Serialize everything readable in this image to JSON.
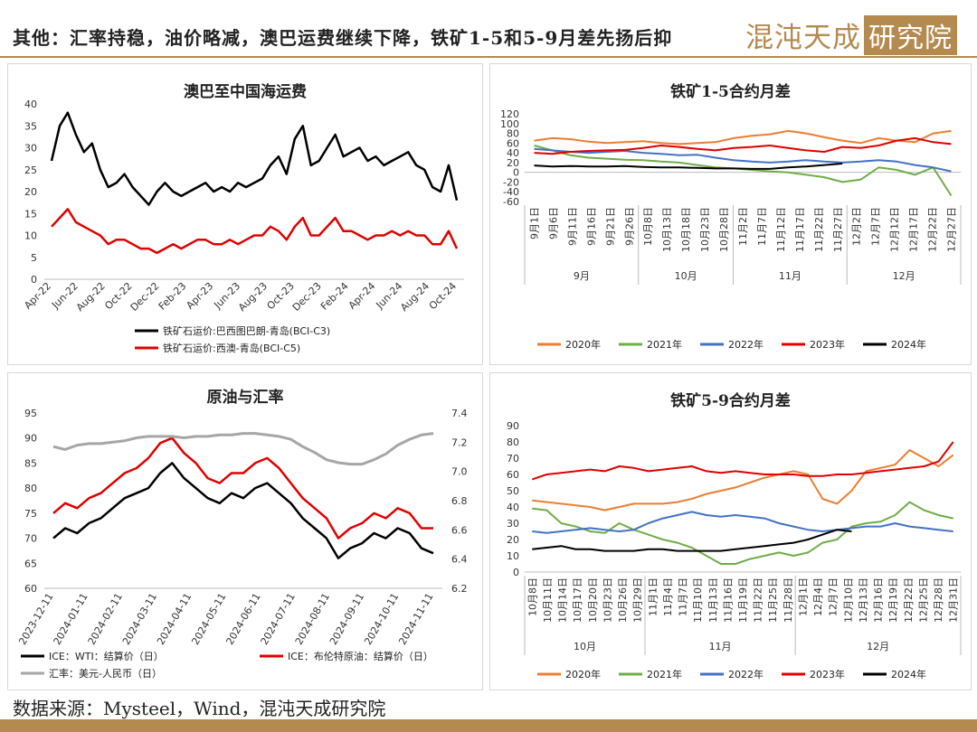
{
  "header": {
    "title": "其他：汇率持稳，油价略减，澳巴运费继续下降，铁矿1-5和5-9月差先扬后抑",
    "logo_text": "混沌天成",
    "logo_box": "研究院"
  },
  "footer": {
    "source": "数据来源：Mysteel，Wind，混沌天成研究院"
  },
  "colors": {
    "accent": "#b48a4e",
    "c2020": "#ed7d31",
    "c2021": "#70ad47",
    "c2022": "#4472c4",
    "c2023": "#e00000",
    "c2024": "#000000"
  },
  "chart_data": [
    {
      "type": "line",
      "title": "澳巴至中国海运费",
      "x_labels": [
        "Apr-22",
        "Jun-22",
        "Aug-22",
        "Oct-22",
        "Dec-22",
        "Feb-23",
        "Apr-23",
        "Jun-23",
        "Aug-23",
        "Oct-23",
        "Dec-23",
        "Feb-24",
        "Apr-24",
        "Jun-24",
        "Aug-24",
        "Oct-24"
      ],
      "ylim": [
        0,
        40
      ],
      "yticks": [
        0,
        5,
        10,
        15,
        20,
        25,
        30,
        35,
        40
      ],
      "series": [
        {
          "name": "铁矿石运价:巴西图巴朗-青岛(BCI-C3)",
          "color": "#000000",
          "values": [
            27,
            35,
            38,
            33,
            29,
            31,
            25,
            21,
            22,
            24,
            21,
            19,
            17,
            20,
            22,
            20,
            19,
            20,
            21,
            22,
            20,
            21,
            20,
            22,
            21,
            22,
            23,
            26,
            28,
            24,
            32,
            35,
            26,
            27,
            30,
            33,
            28,
            29,
            30,
            27,
            28,
            26,
            27,
            28,
            29,
            26,
            25,
            21,
            20,
            26,
            18
          ]
        },
        {
          "name": "铁矿石运价:西澳-青岛(BCI-C5)",
          "color": "#e00000",
          "values": [
            12,
            14,
            16,
            13,
            12,
            11,
            10,
            8,
            9,
            9,
            8,
            7,
            7,
            6,
            7,
            8,
            7,
            8,
            9,
            9,
            8,
            8,
            9,
            8,
            9,
            10,
            10,
            12,
            11,
            9,
            12,
            14,
            10,
            10,
            12,
            14,
            11,
            11,
            10,
            9,
            10,
            10,
            11,
            10,
            11,
            10,
            10,
            8,
            8,
            11,
            7
          ]
        }
      ]
    },
    {
      "type": "line",
      "title": "铁矿1-5合约月差",
      "x_labels": [
        "9月1日",
        "9月6日",
        "9月11日",
        "9月16日",
        "9月21日",
        "9月26日",
        "10月8日",
        "10月13日",
        "10月18日",
        "10月23日",
        "10月28日",
        "11月2日",
        "11月7日",
        "11月12日",
        "11月17日",
        "11月22日",
        "11月27日",
        "12月2日",
        "12月7日",
        "12月12日",
        "12月17日",
        "12月22日",
        "12月27日"
      ],
      "groups": [
        "9月",
        "10月",
        "11月",
        "12月"
      ],
      "ylim": [
        -60,
        120
      ],
      "yticks": [
        -60,
        -40,
        -20,
        0,
        20,
        40,
        60,
        80,
        100,
        120
      ],
      "series": [
        {
          "name": "2020年",
          "color": "#ed7d31",
          "values": [
            65,
            70,
            68,
            63,
            60,
            62,
            64,
            60,
            58,
            60,
            62,
            70,
            75,
            78,
            85,
            80,
            72,
            65,
            60,
            70,
            65,
            62,
            80,
            85
          ]
        },
        {
          "name": "2021年",
          "color": "#70ad47",
          "values": [
            55,
            45,
            35,
            30,
            28,
            26,
            25,
            22,
            20,
            15,
            10,
            8,
            5,
            2,
            0,
            -5,
            -10,
            -20,
            -15,
            10,
            5,
            -5,
            10,
            -48
          ]
        },
        {
          "name": "2022年",
          "color": "#4472c4",
          "values": [
            48,
            45,
            42,
            40,
            42,
            44,
            40,
            38,
            35,
            36,
            30,
            25,
            22,
            20,
            22,
            25,
            22,
            20,
            22,
            25,
            22,
            15,
            10,
            2
          ]
        },
        {
          "name": "2023年",
          "color": "#e00000",
          "values": [
            40,
            38,
            42,
            44,
            45,
            46,
            50,
            55,
            52,
            48,
            45,
            50,
            52,
            55,
            50,
            45,
            42,
            52,
            50,
            55,
            65,
            70,
            62,
            58
          ]
        },
        {
          "name": "2024年",
          "color": "#000000",
          "values": [
            14,
            12,
            13,
            12,
            12,
            13,
            11,
            10,
            10,
            9,
            8,
            8,
            7,
            7,
            10,
            12,
            15,
            18
          ]
        }
      ]
    },
    {
      "type": "line",
      "title": "原油与汇率",
      "x_labels": [
        "2023-12-11",
        "2024-01-11",
        "2024-02-11",
        "2024-03-11",
        "2024-04-11",
        "2024-05-11",
        "2024-06-11",
        "2024-07-11",
        "2024-08-11",
        "2024-09-11",
        "2024-10-11",
        "2024-11-11"
      ],
      "ylim_left": [
        60,
        95
      ],
      "yticks_left": [
        60,
        65,
        70,
        75,
        80,
        85,
        90,
        95
      ],
      "ylim_right": [
        6.2,
        7.4
      ],
      "yticks_right": [
        6.2,
        6.4,
        6.6,
        6.8,
        7.0,
        7.2,
        7.4
      ],
      "series": [
        {
          "name": "ICE：WTI：结算价（日）",
          "color": "#000000",
          "axis": "left",
          "values": [
            70,
            72,
            71,
            73,
            74,
            76,
            78,
            79,
            80,
            83,
            85,
            82,
            80,
            78,
            77,
            79,
            78,
            80,
            81,
            79,
            77,
            74,
            72,
            70,
            66,
            68,
            69,
            71,
            70,
            72,
            71,
            68,
            67
          ]
        },
        {
          "name": "ICE：布伦特原油：结算价（日）",
          "color": "#e00000",
          "axis": "left",
          "values": [
            75,
            77,
            76,
            78,
            79,
            81,
            83,
            84,
            86,
            89,
            90,
            87,
            85,
            82,
            81,
            83,
            83,
            85,
            86,
            84,
            81,
            78,
            76,
            74,
            70,
            72,
            73,
            75,
            74,
            76,
            75,
            72,
            72
          ]
        },
        {
          "name": "汇率：美元-人民币（日）",
          "color": "#a6a6a6",
          "axis": "right",
          "values": [
            7.17,
            7.15,
            7.18,
            7.19,
            7.19,
            7.2,
            7.21,
            7.23,
            7.24,
            7.24,
            7.24,
            7.23,
            7.24,
            7.24,
            7.25,
            7.25,
            7.26,
            7.26,
            7.25,
            7.24,
            7.22,
            7.17,
            7.13,
            7.08,
            7.06,
            7.05,
            7.05,
            7.08,
            7.12,
            7.18,
            7.22,
            7.25,
            7.26
          ]
        }
      ]
    },
    {
      "type": "line",
      "title": "铁矿5-9合约月差",
      "x_labels": [
        "10月8日",
        "10月11日",
        "10月14日",
        "10月17日",
        "10月20日",
        "10月23日",
        "10月26日",
        "10月29日",
        "11月1日",
        "11月4日",
        "11月7日",
        "11月10日",
        "11月13日",
        "11月16日",
        "11月19日",
        "11月22日",
        "11月25日",
        "11月28日",
        "12月1日",
        "12月4日",
        "12月7日",
        "12月10日",
        "12月13日",
        "12月16日",
        "12月19日",
        "12月22日",
        "12月25日",
        "12月28日",
        "12月31日"
      ],
      "groups": [
        "10月",
        "11月",
        "12月"
      ],
      "ylim": [
        0,
        90
      ],
      "yticks": [
        0,
        10,
        20,
        30,
        40,
        50,
        60,
        70,
        80,
        90
      ],
      "series": [
        {
          "name": "2020年",
          "color": "#ed7d31",
          "values": [
            44,
            43,
            42,
            41,
            40,
            38,
            40,
            42,
            42,
            42,
            43,
            45,
            48,
            50,
            52,
            55,
            58,
            60,
            62,
            60,
            45,
            42,
            50,
            62,
            64,
            66,
            75,
            70,
            65,
            72
          ]
        },
        {
          "name": "2021年",
          "color": "#70ad47",
          "values": [
            39,
            38,
            30,
            28,
            25,
            24,
            30,
            26,
            23,
            20,
            18,
            15,
            10,
            5,
            5,
            8,
            10,
            12,
            10,
            12,
            18,
            20,
            28,
            30,
            31,
            35,
            43,
            38,
            35,
            33
          ]
        },
        {
          "name": "2022年",
          "color": "#4472c4",
          "values": [
            25,
            24,
            25,
            26,
            27,
            26,
            25,
            26,
            30,
            33,
            35,
            37,
            35,
            34,
            35,
            34,
            33,
            30,
            28,
            26,
            25,
            26,
            27,
            28,
            28,
            30,
            28,
            27,
            26,
            25
          ]
        },
        {
          "name": "2023年",
          "color": "#e00000",
          "values": [
            57,
            60,
            61,
            62,
            63,
            62,
            65,
            64,
            62,
            63,
            64,
            65,
            62,
            61,
            62,
            61,
            60,
            60,
            60,
            59,
            59,
            60,
            60,
            61,
            62,
            63,
            64,
            65,
            68,
            80
          ]
        },
        {
          "name": "2024年",
          "color": "#000000",
          "values": [
            14,
            15,
            16,
            14,
            14,
            13,
            13,
            13,
            14,
            14,
            13,
            13,
            13,
            13,
            14,
            15,
            16,
            17,
            18,
            20,
            23,
            26,
            25
          ]
        }
      ]
    }
  ]
}
